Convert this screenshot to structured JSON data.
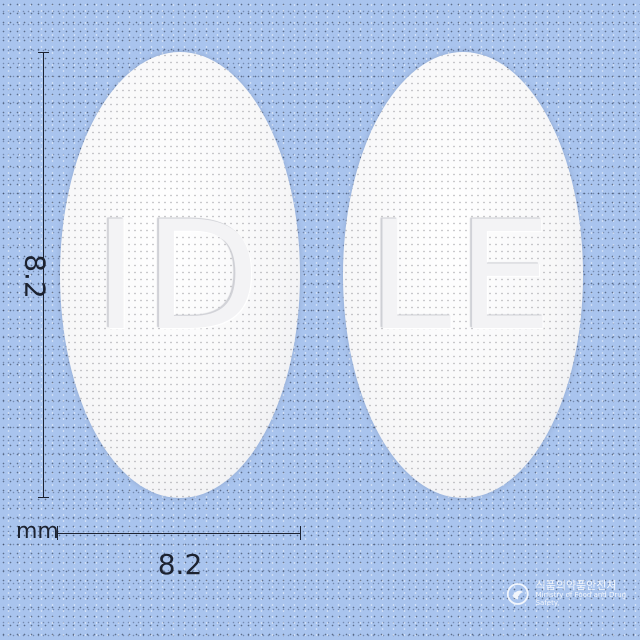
{
  "pills": [
    {
      "imprint": "ID",
      "color": "#f7f7f8"
    },
    {
      "imprint": "LE",
      "color": "#f7f7f8"
    }
  ],
  "dimensions": {
    "height": "8.2",
    "width": "8.2",
    "unit": "mm"
  },
  "watermark": {
    "korean": "식품의약품안전처",
    "english": "Ministry of Food and Drug Safety"
  },
  "colors": {
    "background": "#a9c4ee",
    "dimension_lines": "#1c2230"
  }
}
